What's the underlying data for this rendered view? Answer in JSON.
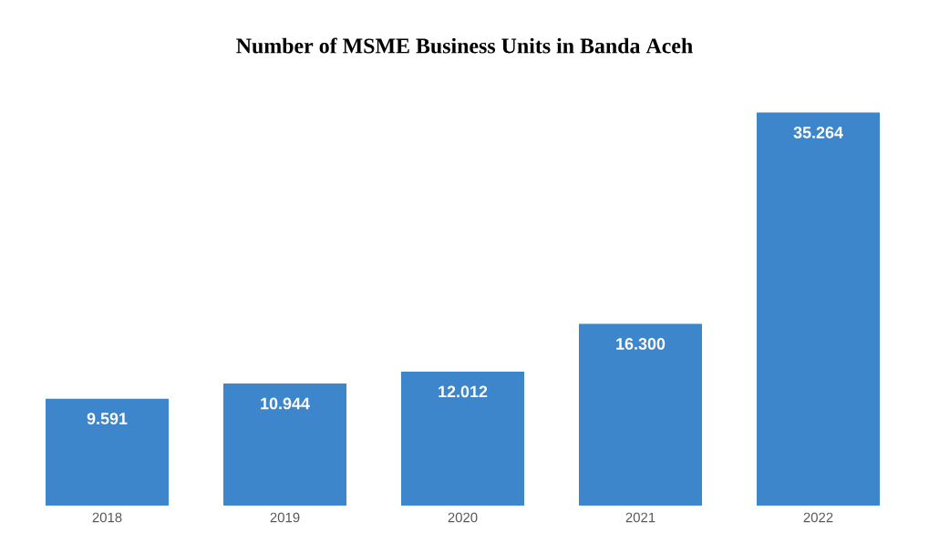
{
  "chart_data": {
    "type": "bar",
    "title": "Number of MSME Business Units in Banda Aceh",
    "categories": [
      "2018",
      "2019",
      "2020",
      "2021",
      "2022"
    ],
    "values": [
      9591,
      10944,
      12012,
      16300,
      35264
    ],
    "value_labels": [
      "9.591",
      "10.944",
      "12.012",
      "16.300",
      "35.264"
    ],
    "color": "#3d86cc"
  }
}
